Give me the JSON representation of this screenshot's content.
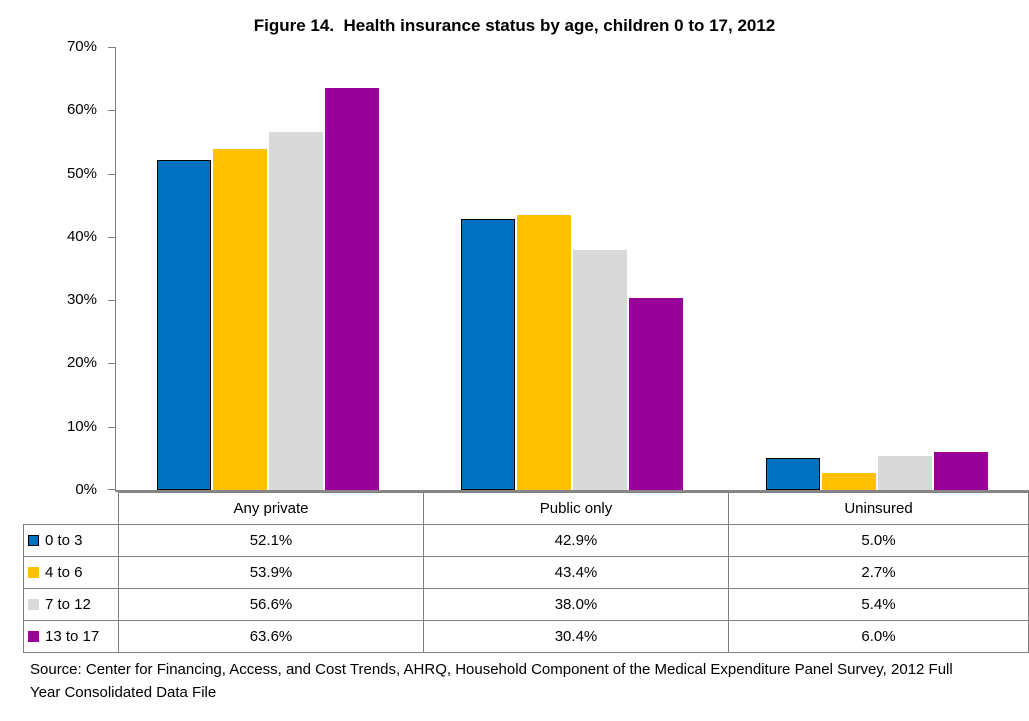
{
  "title": "Figure 14.  Health insurance status by age, children 0 to 17, 2012",
  "chart_data": {
    "type": "bar",
    "title": "Figure 14.  Health insurance status by age, children 0 to 17, 2012",
    "categories": [
      "Any private",
      "Public only",
      "Uninsured"
    ],
    "series": [
      {
        "name": "0 to 3",
        "color": "#0070C0",
        "outline": "#000000",
        "values": [
          52.1,
          42.9,
          5.0
        ]
      },
      {
        "name": "4 to 6",
        "color": "#FFC000",
        "outline": null,
        "values": [
          53.9,
          43.4,
          2.7
        ]
      },
      {
        "name": "7 to 12",
        "color": "#D9D9D9",
        "outline": null,
        "values": [
          56.6,
          38.0,
          5.4
        ]
      },
      {
        "name": "13 to 17",
        "color": "#990099",
        "outline": null,
        "values": [
          63.6,
          30.4,
          6.0
        ]
      }
    ],
    "xlabel": "",
    "ylabel": "",
    "ylim": [
      0,
      70
    ],
    "ytick_step": 10,
    "ytick_labels": [
      "0%",
      "10%",
      "20%",
      "30%",
      "40%",
      "50%",
      "60%",
      "70%"
    ],
    "value_suffix": "%",
    "grid": false,
    "legend_position": "table-left-column",
    "axis_color": "#808080"
  },
  "source_note": "Source: Center for Financing, Access, and Cost Trends, AHRQ, Household Component of the Medical Expenditure Panel Survey, 2012 Full Year Consolidated Data File"
}
